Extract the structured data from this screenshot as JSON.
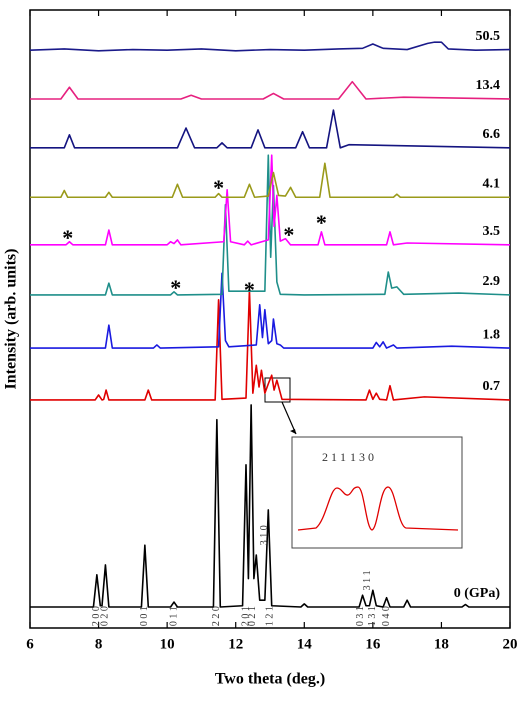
{
  "chart_data": {
    "type": "line",
    "xlabel": "Two theta (deg.)",
    "ylabel": "Intensity (arb. units)",
    "xlim": [
      6,
      20
    ],
    "xticks": [
      6,
      8,
      10,
      12,
      14,
      16,
      18,
      20
    ],
    "ylim": [
      0,
      100
    ],
    "series": [
      {
        "name": "0 (GPa)",
        "color": "#000000",
        "x": [
          6,
          7.85,
          7.95,
          8.05,
          8.1,
          8.2,
          8.3,
          9.25,
          9.35,
          9.45,
          10.1,
          10.2,
          10.3,
          11.35,
          11.45,
          11.55,
          12.2,
          12.3,
          12.37,
          12.45,
          12.53,
          12.6,
          12.7,
          12.85,
          12.95,
          13.05,
          13.9,
          14,
          14.1,
          15.6,
          15.7,
          15.8,
          15.9,
          16,
          16.1,
          16.3,
          16.4,
          16.5,
          16.9,
          17,
          17.1,
          18.6,
          18.7,
          18.8,
          20
        ],
        "values": [
          3.4,
          3.4,
          8.6,
          3.6,
          3.6,
          10.2,
          3.4,
          3.4,
          13.4,
          3.4,
          3.4,
          4.2,
          3.4,
          3.4,
          33.7,
          3.4,
          3.6,
          26.4,
          8,
          36.1,
          8,
          11.8,
          4.5,
          4.5,
          19.1,
          3.6,
          3.4,
          3.9,
          3.4,
          3.4,
          5.3,
          3.6,
          3.6,
          6.1,
          3.6,
          3.4,
          4.9,
          3.4,
          3.4,
          4.5,
          3.4,
          3.4,
          3.8,
          3.4,
          3.4
        ]
      },
      {
        "name": "0.7",
        "color": "#e00000",
        "x": [
          6,
          7.9,
          8.0,
          8.1,
          8.15,
          8.22,
          8.3,
          9.35,
          9.45,
          9.55,
          11.4,
          11.5,
          11.6,
          12.3,
          12.4,
          12.5,
          12.6,
          12.68,
          12.75,
          12.85,
          12.95,
          13.05,
          13.12,
          13.2,
          13.35,
          15.8,
          15.9,
          16.0,
          16.1,
          16.2,
          16.4,
          16.5,
          16.6,
          17.5,
          20
        ],
        "values": [
          36.9,
          36.9,
          37.7,
          36.9,
          37,
          38.5,
          36.9,
          36.9,
          38.5,
          36.9,
          36.9,
          53.1,
          37,
          37.2,
          54.7,
          38,
          42.5,
          39,
          41.7,
          38,
          39.5,
          40.9,
          38.5,
          40.1,
          37,
          36.9,
          38.5,
          37,
          38,
          37,
          36.9,
          39.2,
          36.9,
          37.4,
          36.9
        ]
      },
      {
        "name": "1.8",
        "color": "#1a1ae0",
        "x": [
          6,
          8.2,
          8.3,
          8.4,
          9.6,
          9.7,
          9.8,
          11.5,
          11.6,
          11.7,
          11.8,
          12.6,
          12.7,
          12.78,
          12.85,
          12.95,
          13.05,
          13.1,
          13.2,
          13.3,
          13.4,
          16.0,
          16.1,
          16.2,
          16.3,
          16.4,
          16.6,
          16.7,
          18.3,
          20
        ],
        "values": [
          45.3,
          45.3,
          49,
          45.3,
          45.3,
          45.8,
          45.3,
          45.5,
          57.4,
          46.5,
          45.5,
          45.8,
          52.3,
          47,
          51.5,
          46,
          46.5,
          50,
          46,
          45.8,
          45.3,
          45.3,
          46.2,
          45.5,
          46.3,
          45.3,
          45.8,
          45.3,
          45.6,
          45.3
        ]
      },
      {
        "name": "2.9",
        "color": "#1f8f8a",
        "x": [
          6,
          8.2,
          8.3,
          8.4,
          10.1,
          10.2,
          10.3,
          11.6,
          11.7,
          11.8,
          12.85,
          12.95,
          13.02,
          13.1,
          13.2,
          13.3,
          14,
          16.35,
          16.45,
          16.55,
          16.7,
          16.9,
          18.5,
          20
        ],
        "values": [
          53.9,
          53.9,
          55.8,
          53.9,
          53.9,
          54.4,
          53.9,
          54,
          68.5,
          54.5,
          54.5,
          76.5,
          60,
          71.6,
          56,
          54,
          53.9,
          54,
          57.6,
          55,
          55.2,
          54,
          54.2,
          53.9
        ]
      },
      {
        "name": "3.5",
        "color": "#ff00ff",
        "x": [
          6,
          7.05,
          7.15,
          7.25,
          8.2,
          8.3,
          8.4,
          10.0,
          10.1,
          10.2,
          10.3,
          10.4,
          11.65,
          11.75,
          11.85,
          12.25,
          12.35,
          12.45,
          12.95,
          13.05,
          13.12,
          13.2,
          13.3,
          13.45,
          13.6,
          14.4,
          14.5,
          14.6,
          16.4,
          16.5,
          16.6,
          17.0,
          20
        ],
        "values": [
          62,
          62,
          62.5,
          62,
          62,
          64.4,
          62,
          62,
          62.5,
          62.2,
          62.8,
          62,
          62.5,
          70.9,
          62.5,
          62,
          62.6,
          62,
          62.8,
          76.5,
          65,
          70,
          62.6,
          63,
          62,
          62,
          64.1,
          62,
          62,
          64.1,
          62,
          62.3,
          62
        ]
      },
      {
        "name": "4.1",
        "color": "#9a9a1a",
        "x": [
          6,
          6.9,
          7.0,
          7.1,
          8.2,
          8.3,
          8.4,
          10.15,
          10.3,
          10.45,
          11.4,
          11.5,
          11.6,
          12.25,
          12.4,
          12.55,
          12.95,
          13.1,
          13.25,
          13.45,
          13.6,
          13.75,
          14.45,
          14.6,
          14.75,
          16.6,
          16.7,
          16.8,
          20
        ],
        "values": [
          69.7,
          69.7,
          70.8,
          69.7,
          69.7,
          70.5,
          69.7,
          69.7,
          71.8,
          69.7,
          69.7,
          70.3,
          69.7,
          69.7,
          71.8,
          69.7,
          69.9,
          73.7,
          70,
          69.9,
          71.3,
          69.7,
          69.7,
          75.2,
          69.7,
          69.7,
          70.2,
          69.7,
          69.7
        ]
      },
      {
        "name": "6.6",
        "color": "#141480",
        "x": [
          6,
          7.0,
          7.15,
          7.3,
          10.3,
          10.55,
          10.8,
          11.45,
          11.6,
          11.75,
          12.45,
          12.65,
          12.85,
          13.75,
          13.95,
          14.15,
          14.65,
          14.85,
          15.05,
          15.3,
          20
        ],
        "values": [
          77.7,
          77.7,
          79.8,
          77.7,
          77.7,
          80.9,
          77.7,
          77.7,
          78.5,
          77.7,
          77.7,
          80.6,
          77.7,
          77.7,
          80.3,
          77.7,
          77.7,
          83.8,
          77.7,
          78.2,
          77.7
        ]
      },
      {
        "name": "13.4",
        "color": "#e6207f",
        "x": [
          6,
          6.9,
          7.15,
          7.4,
          10.4,
          10.7,
          11.0,
          12.8,
          13.1,
          13.4,
          15.0,
          15.4,
          15.8,
          16.9,
          20
        ],
        "values": [
          85.6,
          85.6,
          87.5,
          85.6,
          85.6,
          86.2,
          85.6,
          85.6,
          86.5,
          85.6,
          85.6,
          88.4,
          85.6,
          85.9,
          85.6
        ]
      },
      {
        "name": "50.5",
        "color": "#1a1a8a",
        "x": [
          6,
          7,
          8,
          9,
          10,
          11,
          12,
          13,
          14,
          15,
          15.7,
          16.0,
          16.3,
          17,
          17.6,
          17.8,
          18.0,
          18.2,
          19,
          20
        ],
        "values": [
          93.5,
          93.7,
          93.4,
          93.6,
          93.5,
          93.7,
          93.4,
          93.6,
          93.5,
          93.7,
          93.8,
          94.5,
          93.8,
          93.6,
          94.6,
          94.8,
          94.8,
          93.7,
          93.5,
          93.6
        ]
      }
    ],
    "annotations": [
      {
        "text": "2 0 0",
        "x": 7.95,
        "y": 0.3
      },
      {
        "text": "0 2 0",
        "x": 8.2,
        "y": 0.3
      },
      {
        "text": "0 0 1",
        "x": 9.35,
        "y": 0.3
      },
      {
        "text": "0 1 1",
        "x": 10.2,
        "y": 0.3
      },
      {
        "text": "2 2 0",
        "x": 11.45,
        "y": 0.3
      },
      {
        "text": "2 0 1",
        "x": 12.3,
        "y": 0.3
      },
      {
        "text": "0 2 1",
        "x": 12.5,
        "y": 0.3
      },
      {
        "text": "1 2 1",
        "x": 13.0,
        "y": 0.3
      },
      {
        "text": "3 1 0",
        "x": 12.85,
        "y": 13.4
      },
      {
        "text": "0 3 1",
        "x": 15.65,
        "y": 0.3
      },
      {
        "text": "3 1 1",
        "x": 15.85,
        "y": 6.1
      },
      {
        "text": "1 3 1",
        "x": 16.0,
        "y": 0.3
      },
      {
        "text": "0 4 0",
        "x": 16.4,
        "y": 0.3
      }
    ],
    "stars": [
      {
        "text": "*",
        "x": 7.1,
        "y": 63.6
      },
      {
        "text": "*",
        "x": 13.55,
        "y": 64.1
      },
      {
        "text": "*",
        "x": 14.5,
        "y": 66
      },
      {
        "text": "*",
        "x": 11.5,
        "y": 71.7
      },
      {
        "text": "*",
        "x": 10.25,
        "y": 55.5
      },
      {
        "text": "*",
        "x": 12.4,
        "y": 55.2
      }
    ]
  },
  "inset": {
    "labels": [
      "2 1 1",
      "1 3 0"
    ]
  }
}
